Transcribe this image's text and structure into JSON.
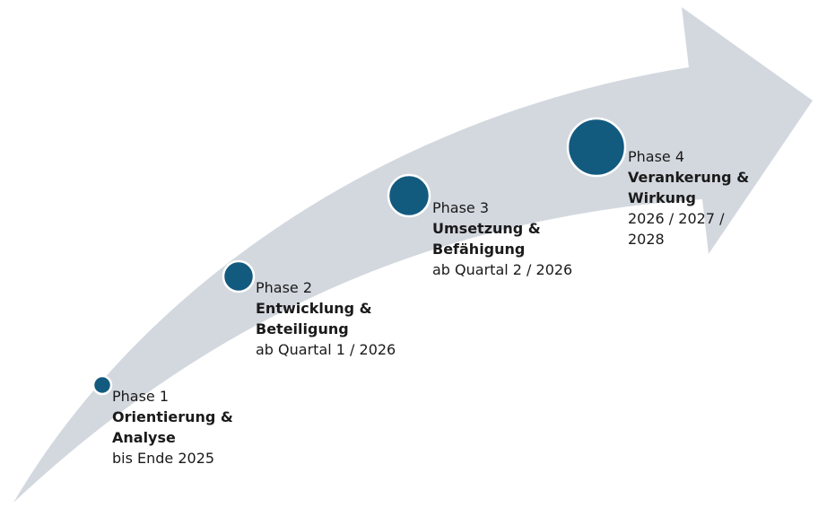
{
  "colors": {
    "arrow": "#d3d8df",
    "dot_fill": "#135a7f",
    "dot_stroke": "#ffffff",
    "text": "#1a1a1a"
  },
  "phases": [
    {
      "phase": "Phase 1",
      "title_line1": "Orientierung &",
      "title_line2": "Analyse",
      "date_line1": "bis Ende 2025",
      "date_line2": ""
    },
    {
      "phase": "Phase 2",
      "title_line1": "Entwicklung &",
      "title_line2": "Beteiligung",
      "date_line1": "ab Quartal 1 / 2026",
      "date_line2": ""
    },
    {
      "phase": "Phase 3",
      "title_line1": "Umsetzung &",
      "title_line2": "Befähigung",
      "date_line1": "ab Quartal 2 / 2026",
      "date_line2": ""
    },
    {
      "phase": "Phase 4",
      "title_line1": "Verankerung &",
      "title_line2": "Wirkung",
      "date_line1": "2026 / 2027 /",
      "date_line2": "2028"
    }
  ]
}
